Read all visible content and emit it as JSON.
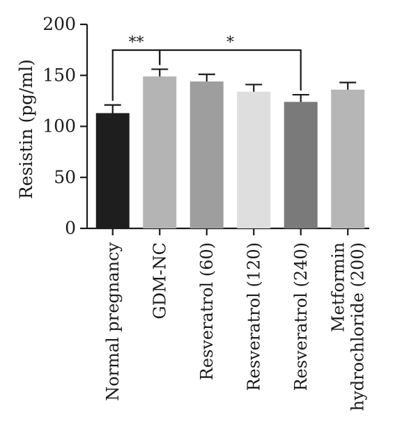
{
  "chart_data": {
    "type": "bar",
    "title": "",
    "xlabel": "",
    "ylabel": "Resistin (pg/ml)",
    "ylim": [
      0,
      200
    ],
    "yticks": [
      "0",
      "50",
      "100",
      "150",
      "200"
    ],
    "categories": [
      [
        "Normal pregnancy"
      ],
      [
        "GDM-NC"
      ],
      [
        "Resveratrol (60)"
      ],
      [
        "Resveratrol (120)"
      ],
      [
        "Resveratrol (240)"
      ],
      [
        "Metformin",
        "hydrochloride (200)"
      ]
    ],
    "values": [
      113,
      149,
      144,
      134,
      124,
      136
    ],
    "errors": [
      8,
      7,
      7,
      7,
      7,
      7
    ],
    "bar_colors": [
      "#1e1e1e",
      "#b4b4b4",
      "#9e9e9e",
      "#dedede",
      "#7a7a7a",
      "#b6b6b6"
    ],
    "significance": [
      {
        "from": 0,
        "to": 1,
        "label": "**"
      },
      {
        "from": 1,
        "to": 4,
        "label": "*"
      }
    ],
    "grid": false,
    "legend": "none"
  }
}
